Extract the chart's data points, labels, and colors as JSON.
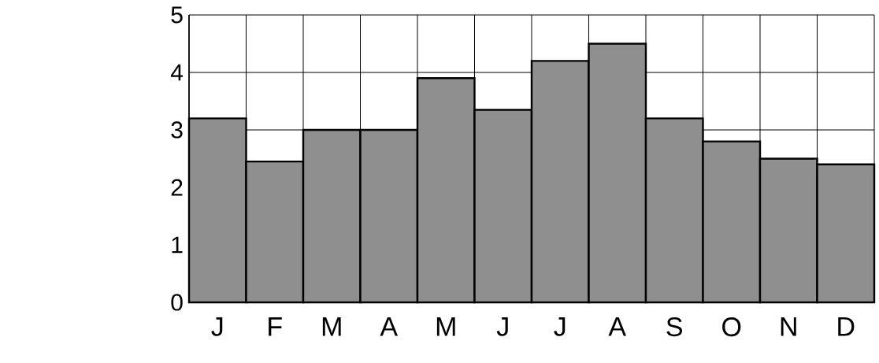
{
  "chart_data": {
    "type": "bar",
    "categories": [
      "J",
      "F",
      "M",
      "A",
      "M",
      "J",
      "J",
      "A",
      "S",
      "O",
      "N",
      "D"
    ],
    "values": [
      3.2,
      2.45,
      3.0,
      3.0,
      3.9,
      3.35,
      4.2,
      4.5,
      3.2,
      2.8,
      2.5,
      2.4
    ],
    "color": "#8f8f8f",
    "ylim": [
      0,
      5
    ],
    "yticks": [
      0,
      1,
      2,
      3,
      4,
      5
    ],
    "grid": true
  }
}
